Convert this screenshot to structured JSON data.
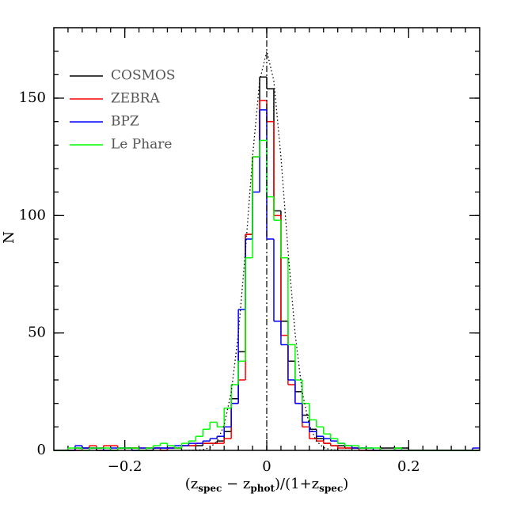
{
  "chart_data": {
    "type": "step_histogram",
    "ylabel": "N",
    "xlabel_parts": [
      "(z",
      "spec",
      " − z",
      "phot",
      ")/(1+z",
      "spec",
      ")"
    ],
    "xlim": [
      -0.3,
      0.3
    ],
    "ylim": [
      0,
      180
    ],
    "xticks": [
      {
        "value": -0.2,
        "label": "−0.2"
      },
      0,
      0.2
    ],
    "yticks": [
      0,
      50,
      100,
      150
    ],
    "xminorticks": [
      -0.28,
      -0.26,
      -0.24,
      -0.22,
      -0.2,
      -0.18,
      -0.16,
      -0.14,
      -0.12,
      -0.1,
      -0.08,
      -0.06,
      -0.04,
      -0.02,
      0,
      0.02,
      0.04,
      0.06,
      0.08,
      0.1,
      0.12,
      0.14,
      0.16,
      0.18,
      0.2,
      0.22,
      0.24,
      0.26,
      0.28
    ],
    "yminorticks": [
      10,
      20,
      30,
      40,
      50,
      60,
      70,
      80,
      90,
      100,
      110,
      120,
      130,
      140,
      150,
      160,
      170
    ],
    "vline": 0,
    "bins": [
      -0.3,
      -0.29,
      -0.28,
      -0.27,
      -0.26,
      -0.25,
      -0.24,
      -0.23,
      -0.22,
      -0.21,
      -0.2,
      -0.19,
      -0.18,
      -0.17,
      -0.16,
      -0.15,
      -0.14,
      -0.13,
      -0.12,
      -0.11,
      -0.1,
      -0.09,
      -0.08,
      -0.07,
      -0.06,
      -0.05,
      -0.04,
      -0.03,
      -0.02,
      -0.01,
      0,
      0.01,
      0.02,
      0.03,
      0.04,
      0.05,
      0.06,
      0.07,
      0.08,
      0.09,
      0.1,
      0.11,
      0.12,
      0.13,
      0.14,
      0.15,
      0.16,
      0.17,
      0.18,
      0.19,
      0.2,
      0.21,
      0.22,
      0.23,
      0.24,
      0.25,
      0.26,
      0.27,
      0.28,
      0.29,
      0.3
    ],
    "series": [
      {
        "name": "COSMOS",
        "color": "#000000",
        "values": [
          0,
          0,
          0,
          1,
          1,
          1,
          0,
          0,
          0,
          1,
          1,
          1,
          0,
          0,
          1,
          1,
          1,
          1,
          2,
          2,
          2,
          3,
          3,
          4,
          8,
          22,
          42,
          92,
          125,
          159,
          154,
          102,
          55,
          38,
          25,
          15,
          9,
          5,
          3,
          2,
          2,
          1,
          1,
          1,
          0,
          0,
          1,
          1,
          1,
          1,
          0,
          0,
          0,
          0,
          0,
          0,
          0,
          0,
          0,
          0
        ]
      },
      {
        "name": "ZEBRA",
        "color": "#ff0000",
        "values": [
          0,
          0,
          0,
          0,
          1,
          2,
          1,
          2,
          2,
          1,
          1,
          1,
          1,
          1,
          1,
          0,
          1,
          1,
          2,
          2,
          3,
          3,
          3,
          3,
          5,
          20,
          30,
          92,
          125,
          149,
          140,
          100,
          49,
          28,
          20,
          10,
          5,
          4,
          3,
          2,
          1,
          1,
          1,
          0,
          0,
          0,
          0,
          0,
          0,
          0,
          0,
          0,
          0,
          0,
          0,
          0,
          0,
          0,
          0,
          0
        ]
      },
      {
        "name": "BPZ",
        "color": "#0000ff",
        "values": [
          0,
          0,
          0,
          2,
          1,
          1,
          1,
          0,
          1,
          1,
          1,
          0,
          1,
          1,
          1,
          1,
          1,
          2,
          2,
          3,
          3,
          4,
          5,
          6,
          10,
          20,
          60,
          90,
          110,
          145,
          90,
          55,
          45,
          30,
          20,
          12,
          8,
          6,
          5,
          4,
          3,
          2,
          1,
          1,
          1,
          0,
          0,
          0,
          0,
          0,
          0,
          0,
          0,
          0,
          0,
          0,
          0,
          0,
          0,
          1
        ]
      },
      {
        "name": "Le Phare",
        "color": "#00ff00",
        "values": [
          0,
          0,
          1,
          1,
          0,
          1,
          1,
          1,
          0,
          1,
          1,
          1,
          0,
          1,
          2,
          3,
          2,
          1,
          3,
          4,
          6,
          9,
          12,
          10,
          18,
          28,
          38,
          82,
          125,
          132,
          108,
          98,
          82,
          45,
          30,
          20,
          13,
          10,
          7,
          5,
          3,
          2,
          2,
          1,
          1,
          1,
          0,
          0,
          1,
          0,
          0,
          0,
          0,
          0,
          0,
          0,
          0,
          0,
          0,
          0
        ]
      }
    ],
    "curve": {
      "x": [
        -0.12,
        -0.11,
        -0.1,
        -0.09,
        -0.08,
        -0.07,
        -0.06,
        -0.05,
        -0.04,
        -0.03,
        -0.02,
        -0.01,
        0,
        0.01,
        0.02,
        0.03,
        0.04,
        0.05,
        0.06,
        0.07,
        0.08,
        0.09,
        0.1,
        0.11,
        0.12
      ],
      "values": [
        0,
        0,
        0.1,
        0.3,
        1.2,
        3.9,
        10.7,
        24.8,
        49.6,
        85,
        125,
        157.4,
        170,
        157.4,
        125,
        85,
        49.6,
        24.8,
        10.7,
        3.9,
        1.2,
        0.3,
        0.1,
        0,
        0
      ]
    }
  }
}
